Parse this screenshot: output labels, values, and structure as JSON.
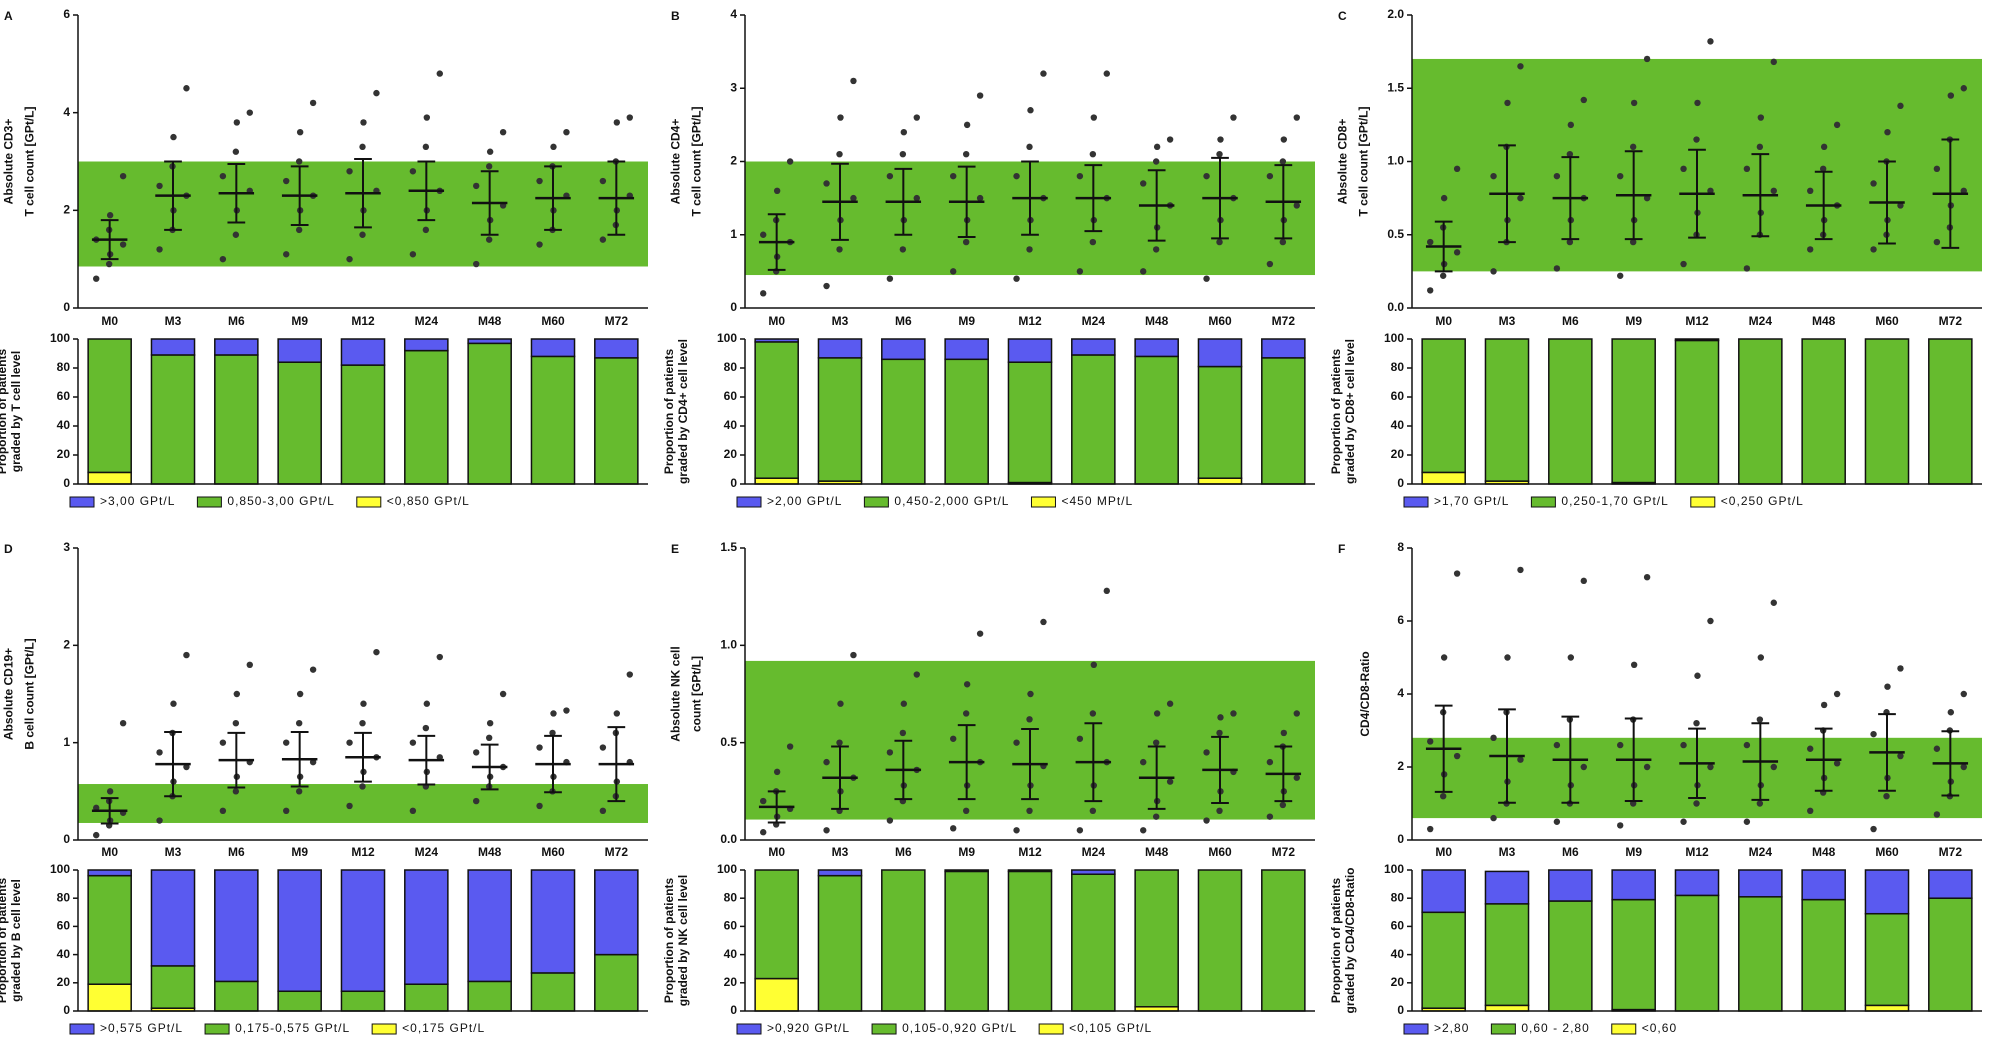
{
  "chart_data": [
    {
      "type": "dotplot",
      "label": "A",
      "ylabel": [
        "Absolute CD3+",
        "T cell count [GPt/L]"
      ],
      "categories": [
        "M0",
        "M3",
        "M6",
        "M9",
        "M12",
        "M24",
        "M48",
        "M60",
        "M72"
      ],
      "ylim": [
        0,
        6
      ],
      "yticks": [
        0,
        2,
        4,
        6
      ],
      "reference_range": [
        0.85,
        3.0
      ],
      "band_color": "#66bb2e",
      "color": "#333333",
      "mean": [
        1.4,
        2.3,
        2.35,
        2.3,
        2.35,
        2.4,
        2.15,
        2.25,
        2.25
      ],
      "sd": [
        0.4,
        0.7,
        0.6,
        0.6,
        0.7,
        0.6,
        0.65,
        0.65,
        0.75
      ],
      "points": [
        [
          0.6,
          0.9,
          1.1,
          1.3,
          1.4,
          1.6,
          1.9,
          2.7
        ],
        [
          1.2,
          1.6,
          2.0,
          2.3,
          2.5,
          2.9,
          3.5,
          4.5
        ],
        [
          1.0,
          1.5,
          2.0,
          2.4,
          2.7,
          3.2,
          3.8,
          4.0
        ],
        [
          1.1,
          1.6,
          2.0,
          2.3,
          2.6,
          3.0,
          3.6,
          4.2
        ],
        [
          1.0,
          1.5,
          2.0,
          2.4,
          2.8,
          3.3,
          3.8,
          4.4
        ],
        [
          1.1,
          1.6,
          2.0,
          2.4,
          2.8,
          3.3,
          3.9,
          4.8
        ],
        [
          0.9,
          1.4,
          1.8,
          2.1,
          2.5,
          2.9,
          3.2,
          3.6
        ],
        [
          1.3,
          1.6,
          2.0,
          2.3,
          2.6,
          2.9,
          3.3,
          3.6
        ],
        [
          1.4,
          1.7,
          2.0,
          2.3,
          2.6,
          3.0,
          3.8,
          3.9
        ]
      ]
    },
    {
      "type": "stacked_bar",
      "ylabel": [
        "Proportion of patients",
        "graded by T cell level"
      ],
      "ylim": [
        0,
        100
      ],
      "yticks": [
        0,
        20,
        40,
        60,
        80,
        100
      ],
      "series": [
        {
          "name": ">3,00 GPt/L",
          "color": "#5a5af0",
          "values": [
            0,
            11,
            11,
            16,
            18,
            8,
            3,
            12,
            13
          ]
        },
        {
          "name": "0,850-3,00 GPt/L",
          "color": "#66bb2e",
          "values": [
            92,
            89,
            89,
            84,
            82,
            92,
            97,
            88,
            87
          ]
        },
        {
          "name": "<0,850 GPt/L",
          "color": "#ffff33",
          "values": [
            8,
            0,
            0,
            0,
            0,
            0,
            0,
            0,
            0
          ]
        }
      ]
    },
    {
      "type": "dotplot",
      "label": "B",
      "ylabel": [
        "Absolute CD4+",
        "T cell count [GPt/L]"
      ],
      "categories": [
        "M0",
        "M3",
        "M6",
        "M9",
        "M12",
        "M24",
        "M48",
        "M60",
        "M72"
      ],
      "ylim": [
        0,
        4
      ],
      "yticks": [
        0,
        1,
        2,
        3,
        4
      ],
      "reference_range": [
        0.45,
        2.0
      ],
      "band_color": "#66bb2e",
      "color": "#333333",
      "mean": [
        0.9,
        1.45,
        1.45,
        1.45,
        1.5,
        1.5,
        1.4,
        1.5,
        1.45
      ],
      "sd": [
        0.38,
        0.52,
        0.45,
        0.48,
        0.5,
        0.45,
        0.48,
        0.55,
        0.5
      ],
      "points": [
        [
          0.2,
          0.5,
          0.7,
          0.9,
          1.0,
          1.2,
          1.6,
          2.0
        ],
        [
          0.3,
          0.8,
          1.2,
          1.5,
          1.7,
          2.1,
          2.6,
          3.1
        ],
        [
          0.4,
          0.8,
          1.2,
          1.5,
          1.8,
          2.1,
          2.4,
          2.6
        ],
        [
          0.5,
          0.9,
          1.2,
          1.5,
          1.8,
          2.1,
          2.5,
          2.9
        ],
        [
          0.4,
          0.8,
          1.2,
          1.5,
          1.8,
          2.2,
          2.7,
          3.2
        ],
        [
          0.5,
          0.9,
          1.2,
          1.5,
          1.8,
          2.1,
          2.6,
          3.2
        ],
        [
          0.5,
          0.8,
          1.1,
          1.4,
          1.7,
          2.0,
          2.2,
          2.3
        ],
        [
          0.4,
          0.9,
          1.2,
          1.5,
          1.8,
          2.1,
          2.3,
          2.6
        ],
        [
          0.6,
          0.9,
          1.2,
          1.4,
          1.8,
          2.0,
          2.3,
          2.6
        ]
      ]
    },
    {
      "type": "stacked_bar",
      "ylabel": [
        "Proportion of patients",
        "graded by CD4+ cell level"
      ],
      "ylim": [
        0,
        100
      ],
      "yticks": [
        0,
        20,
        40,
        60,
        80,
        100
      ],
      "series": [
        {
          "name": ">2,00 GPt/L",
          "color": "#5a5af0",
          "values": [
            2,
            13,
            14,
            14,
            16,
            11,
            12,
            19,
            13
          ]
        },
        {
          "name": "0,450-2,000 GPt/L",
          "color": "#66bb2e",
          "values": [
            94,
            85,
            86,
            86,
            83,
            89,
            88,
            77,
            87
          ]
        },
        {
          "name": "<450 MPt/L",
          "color": "#ffff33",
          "values": [
            4,
            2,
            0,
            0,
            1,
            0,
            0,
            4,
            0
          ]
        }
      ]
    },
    {
      "type": "dotplot",
      "label": "C",
      "ylabel": [
        "Absolute CD8+",
        "T cell count [GPt/L]"
      ],
      "categories": [
        "M0",
        "M3",
        "M6",
        "M9",
        "M12",
        "M24",
        "M48",
        "M60",
        "M72"
      ],
      "ylim": [
        0,
        2
      ],
      "yticks": [
        {
          "value": 0,
          "label": "0.0"
        },
        0.5,
        {
          "value": 1,
          "label": "1.0"
        },
        1.5,
        {
          "value": 2,
          "label": "2.0"
        }
      ],
      "reference_range": [
        0.25,
        1.7
      ],
      "band_color": "#66bb2e",
      "color": "#333333",
      "mean": [
        0.42,
        0.78,
        0.75,
        0.77,
        0.78,
        0.77,
        0.7,
        0.72,
        0.78
      ],
      "sd": [
        0.17,
        0.33,
        0.28,
        0.3,
        0.3,
        0.28,
        0.23,
        0.28,
        0.37
      ],
      "points": [
        [
          0.12,
          0.22,
          0.3,
          0.38,
          0.45,
          0.55,
          0.75,
          0.95
        ],
        [
          0.25,
          0.45,
          0.6,
          0.75,
          0.9,
          1.1,
          1.4,
          1.65
        ],
        [
          0.27,
          0.45,
          0.6,
          0.75,
          0.9,
          1.05,
          1.25,
          1.42
        ],
        [
          0.22,
          0.45,
          0.6,
          0.75,
          0.9,
          1.1,
          1.4,
          1.7
        ],
        [
          0.3,
          0.5,
          0.65,
          0.8,
          0.95,
          1.15,
          1.4,
          1.82
        ],
        [
          0.27,
          0.5,
          0.65,
          0.8,
          0.95,
          1.1,
          1.3,
          1.68
        ],
        [
          0.4,
          0.5,
          0.6,
          0.7,
          0.8,
          0.95,
          1.1,
          1.25
        ],
        [
          0.4,
          0.5,
          0.6,
          0.7,
          0.85,
          1.0,
          1.2,
          1.38
        ],
        [
          0.45,
          0.55,
          0.7,
          0.8,
          0.95,
          1.15,
          1.45,
          1.5
        ]
      ]
    },
    {
      "type": "stacked_bar",
      "ylabel": [
        "Proportion of patients",
        "graded by CD8+ cell level"
      ],
      "ylim": [
        0,
        100
      ],
      "yticks": [
        0,
        20,
        40,
        60,
        80,
        100
      ],
      "series": [
        {
          "name": ">1,70 GPt/L",
          "color": "#5a5af0",
          "values": [
            0,
            0,
            0,
            0,
            1,
            0,
            0,
            0,
            0
          ]
        },
        {
          "name": "0,250-1,70 GPt/L",
          "color": "#66bb2e",
          "values": [
            92,
            98,
            100,
            99,
            99,
            100,
            100,
            100,
            100
          ]
        },
        {
          "name": "<0,250 GPt/L",
          "color": "#ffff33",
          "values": [
            8,
            2,
            0,
            1,
            0,
            0,
            0,
            0,
            0
          ]
        }
      ]
    },
    {
      "type": "dotplot",
      "label": "D",
      "ylabel": [
        "Absolute CD19+",
        "B cell count [GPt/L]"
      ],
      "categories": [
        "M0",
        "M3",
        "M6",
        "M9",
        "M12",
        "M24",
        "M48",
        "M60",
        "M72"
      ],
      "ylim": [
        0,
        3
      ],
      "yticks": [
        0,
        1,
        2,
        3
      ],
      "reference_range": [
        0.175,
        0.575
      ],
      "band_color": "#66bb2e",
      "color": "#333333",
      "mean": [
        0.3,
        0.78,
        0.82,
        0.83,
        0.85,
        0.82,
        0.75,
        0.78,
        0.78
      ],
      "sd": [
        0.13,
        0.33,
        0.28,
        0.28,
        0.25,
        0.25,
        0.23,
        0.29,
        0.38
      ],
      "points": [
        [
          0.05,
          0.15,
          0.2,
          0.28,
          0.33,
          0.4,
          0.5,
          1.2
        ],
        [
          0.2,
          0.45,
          0.6,
          0.75,
          0.9,
          1.1,
          1.4,
          1.9
        ],
        [
          0.3,
          0.5,
          0.65,
          0.8,
          1.0,
          1.2,
          1.5,
          1.8
        ],
        [
          0.3,
          0.5,
          0.65,
          0.8,
          1.0,
          1.2,
          1.5,
          1.75
        ],
        [
          0.35,
          0.55,
          0.7,
          0.85,
          1.0,
          1.2,
          1.4,
          1.93
        ],
        [
          0.3,
          0.55,
          0.7,
          0.85,
          1.0,
          1.15,
          1.4,
          1.88
        ],
        [
          0.4,
          0.55,
          0.65,
          0.75,
          0.9,
          1.05,
          1.2,
          1.5
        ],
        [
          0.35,
          0.5,
          0.65,
          0.8,
          0.95,
          1.1,
          1.3,
          1.33
        ],
        [
          0.3,
          0.45,
          0.6,
          0.8,
          0.95,
          1.1,
          1.3,
          1.7
        ]
      ]
    },
    {
      "type": "stacked_bar",
      "ylabel": [
        "Proportion of patients",
        "graded by B cell level"
      ],
      "ylim": [
        0,
        100
      ],
      "yticks": [
        0,
        20,
        40,
        60,
        80,
        100
      ],
      "series": [
        {
          "name": ">0,575 GPt/L",
          "color": "#5a5af0",
          "values": [
            4,
            68,
            79,
            86,
            86,
            81,
            79,
            73,
            60
          ]
        },
        {
          "name": "0,175-0,575 GPt/L",
          "color": "#66bb2e",
          "values": [
            77,
            30,
            21,
            14,
            14,
            19,
            21,
            27,
            40
          ]
        },
        {
          "name": "<0,175 GPt/L",
          "color": "#ffff33",
          "values": [
            19,
            2,
            0,
            0,
            0,
            0,
            0,
            0,
            0
          ]
        }
      ]
    },
    {
      "type": "dotplot",
      "label": "E",
      "ylabel": [
        "Absolute NK cell",
        "count [GPt/L]"
      ],
      "categories": [
        "M0",
        "M3",
        "M6",
        "M9",
        "M12",
        "M24",
        "M48",
        "M60",
        "M72"
      ],
      "ylim": [
        0,
        1.5
      ],
      "yticks": [
        {
          "value": 0,
          "label": "0.0"
        },
        0.5,
        {
          "value": 1,
          "label": "1.0"
        },
        1.5
      ],
      "reference_range": [
        0.105,
        0.92
      ],
      "band_color": "#66bb2e",
      "color": "#333333",
      "mean": [
        0.17,
        0.32,
        0.36,
        0.4,
        0.39,
        0.4,
        0.32,
        0.36,
        0.34
      ],
      "sd": [
        0.08,
        0.16,
        0.15,
        0.19,
        0.18,
        0.2,
        0.16,
        0.17,
        0.14
      ],
      "points": [
        [
          0.04,
          0.08,
          0.12,
          0.16,
          0.2,
          0.25,
          0.35,
          0.48
        ],
        [
          0.05,
          0.15,
          0.25,
          0.32,
          0.4,
          0.5,
          0.7,
          0.95
        ],
        [
          0.1,
          0.2,
          0.28,
          0.36,
          0.45,
          0.55,
          0.7,
          0.85
        ],
        [
          0.06,
          0.15,
          0.28,
          0.4,
          0.52,
          0.65,
          0.8,
          1.06
        ],
        [
          0.05,
          0.15,
          0.28,
          0.38,
          0.5,
          0.62,
          0.75,
          1.12
        ],
        [
          0.05,
          0.15,
          0.28,
          0.4,
          0.52,
          0.65,
          0.9,
          1.28
        ],
        [
          0.05,
          0.12,
          0.2,
          0.3,
          0.4,
          0.5,
          0.65,
          0.7
        ],
        [
          0.1,
          0.15,
          0.25,
          0.35,
          0.45,
          0.55,
          0.63,
          0.65
        ],
        [
          0.12,
          0.18,
          0.25,
          0.32,
          0.4,
          0.48,
          0.55,
          0.65
        ]
      ]
    },
    {
      "type": "stacked_bar",
      "ylabel": [
        "Proportion of patients",
        "graded by NK cell level"
      ],
      "ylim": [
        0,
        100
      ],
      "yticks": [
        0,
        20,
        40,
        60,
        80,
        100
      ],
      "series": [
        {
          "name": ">0,920 GPt/L",
          "color": "#5a5af0",
          "values": [
            0,
            4,
            0,
            1,
            1,
            3,
            0,
            0,
            0
          ]
        },
        {
          "name": "0,105-0,920 GPt/L",
          "color": "#66bb2e",
          "values": [
            77,
            96,
            100,
            99,
            99,
            97,
            97,
            100,
            100
          ]
        },
        {
          "name": "<0,105 GPt/L",
          "color": "#ffff33",
          "values": [
            23,
            0,
            0,
            0,
            0,
            0,
            3,
            0,
            0
          ]
        }
      ]
    },
    {
      "type": "dotplot",
      "label": "F",
      "ylabel": [
        "CD4/CD8-Ratio"
      ],
      "categories": [
        "M0",
        "M3",
        "M6",
        "M9",
        "M12",
        "M24",
        "M48",
        "M60",
        "M72"
      ],
      "ylim": [
        0,
        8
      ],
      "yticks": [
        0,
        2,
        4,
        6,
        8
      ],
      "reference_range": [
        0.6,
        2.8
      ],
      "band_color": "#66bb2e",
      "color": "#333333",
      "mean": [
        2.5,
        2.3,
        2.2,
        2.2,
        2.1,
        2.15,
        2.2,
        2.4,
        2.1
      ],
      "sd": [
        1.18,
        1.28,
        1.18,
        1.13,
        0.95,
        1.05,
        0.85,
        1.05,
        0.88
      ],
      "points": [
        [
          0.3,
          1.2,
          1.8,
          2.3,
          2.7,
          3.5,
          5.0,
          7.3
        ],
        [
          0.6,
          1.0,
          1.6,
          2.2,
          2.8,
          3.5,
          5.0,
          7.4
        ],
        [
          0.5,
          1.0,
          1.5,
          2.0,
          2.6,
          3.3,
          5.0,
          7.1
        ],
        [
          0.4,
          1.0,
          1.5,
          2.0,
          2.6,
          3.3,
          4.8,
          7.2
        ],
        [
          0.5,
          1.0,
          1.5,
          2.0,
          2.6,
          3.2,
          4.5,
          6.0
        ],
        [
          0.5,
          1.0,
          1.5,
          2.0,
          2.6,
          3.3,
          5.0,
          6.5
        ],
        [
          0.8,
          1.3,
          1.7,
          2.1,
          2.5,
          3.0,
          3.7,
          4.0
        ],
        [
          0.3,
          1.2,
          1.7,
          2.3,
          2.9,
          3.5,
          4.2,
          4.7
        ],
        [
          0.7,
          1.2,
          1.6,
          2.0,
          2.5,
          3.0,
          3.5,
          4.0
        ]
      ]
    },
    {
      "type": "stacked_bar",
      "ylabel": [
        "Proportion of patients",
        "graded by CD4/CD8-Ratio"
      ],
      "ylim": [
        0,
        100
      ],
      "yticks": [
        0,
        20,
        40,
        60,
        80,
        100
      ],
      "series": [
        {
          "name": ">2,80",
          "color": "#5a5af0",
          "values": [
            30,
            23,
            22,
            21,
            18,
            19,
            21,
            31,
            20
          ]
        },
        {
          "name": "0,60 - 2,80",
          "color": "#66bb2e",
          "values": [
            68,
            72,
            78,
            78,
            82,
            81,
            79,
            65,
            80
          ]
        },
        {
          "name": "<0,60",
          "color": "#ffff33",
          "values": [
            2,
            4,
            0,
            1,
            0,
            0,
            0,
            4,
            0
          ]
        }
      ]
    }
  ]
}
